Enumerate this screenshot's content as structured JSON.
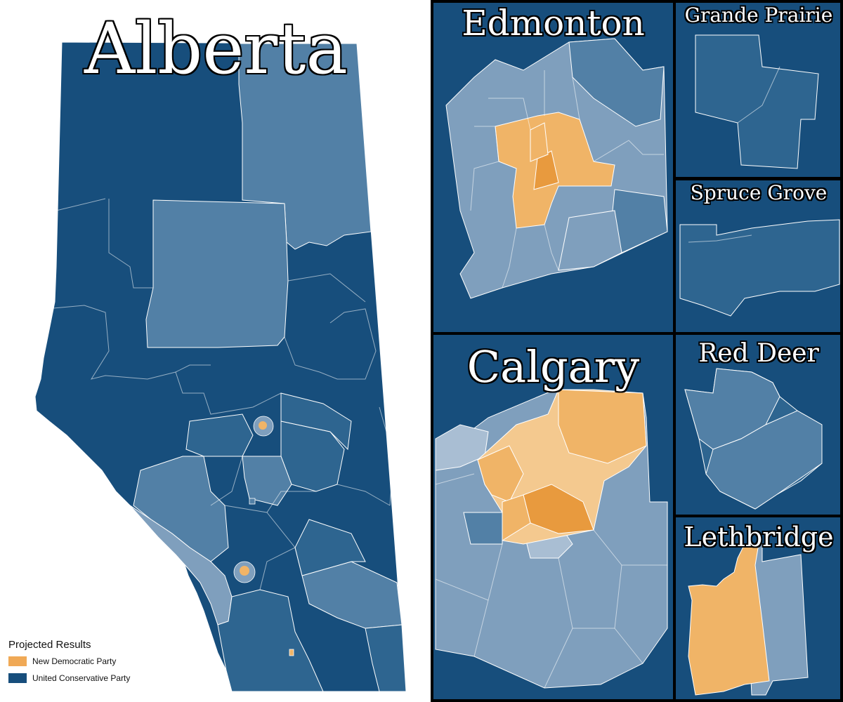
{
  "main_map": {
    "title": "Alberta"
  },
  "insets": {
    "edmonton": "Edmonton",
    "grande_prairie": "Grande Prairie",
    "spruce_grove": "Spruce Grove",
    "calgary": "Calgary",
    "red_deer": "Red Deer",
    "lethbridge": "Lethbridge"
  },
  "legend": {
    "title": "Projected Results",
    "items": [
      {
        "label": "New Democratic Party",
        "color": "#f0a956"
      },
      {
        "label": "United Conservative Party",
        "color": "#174e7c"
      }
    ]
  },
  "colors": {
    "ucp_strong": "#174e7c",
    "ucp_mid": "#2e6590",
    "ucp_light": "#5280a6",
    "ucp_pale": "#7f9fbd",
    "ucp_palest": "#a9bed3",
    "ndp_strong": "#e89a3e",
    "ndp_mid": "#f0b467",
    "ndp_light": "#f4c98f",
    "border": "#ffffff"
  }
}
